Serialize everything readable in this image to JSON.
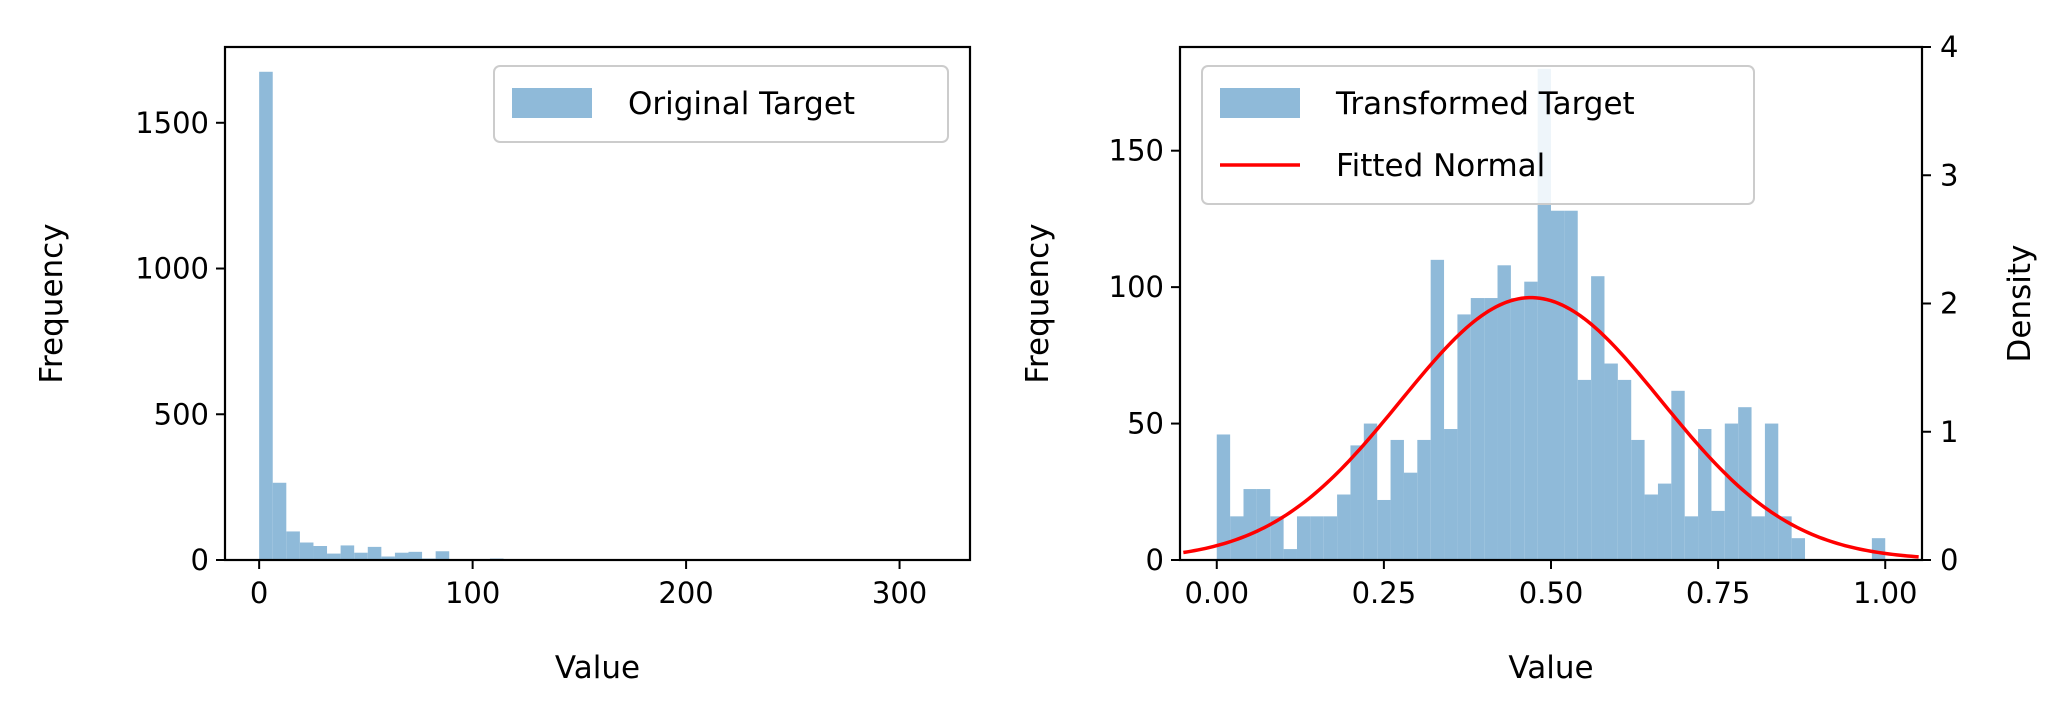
{
  "chart_data": [
    {
      "type": "bar",
      "subtype": "histogram",
      "xlabel": "Value",
      "ylabel": "Frequency",
      "xlim": [
        -16,
        333
      ],
      "ylim": [
        0,
        1760
      ],
      "xticks": [
        0,
        100,
        200,
        300
      ],
      "xtick_labels": [
        "0",
        "100",
        "200",
        "300"
      ],
      "yticks": [
        0,
        500,
        1000,
        1500
      ],
      "ytick_labels": [
        "0",
        "500",
        "1000",
        "1500"
      ],
      "bar_color": "#8fbad9",
      "legend": {
        "placement": "top-right",
        "entries": [
          "Original Target"
        ]
      },
      "series": [
        {
          "name": "Original Target",
          "bin_width": 6.36,
          "x_start": 0,
          "values": [
            1675,
            265,
            98,
            60,
            48,
            22,
            50,
            25,
            45,
            12,
            25,
            28,
            5,
            30,
            0,
            0,
            0,
            5,
            0,
            0,
            0,
            0,
            0,
            0,
            0,
            0,
            0,
            0,
            0,
            0,
            0,
            0,
            0,
            0,
            0,
            0,
            0,
            0,
            0,
            0,
            0,
            0,
            0,
            0,
            0,
            0,
            0,
            0,
            0,
            2
          ]
        }
      ]
    },
    {
      "type": "bar",
      "subtype": "histogram-with-fitted-curve",
      "xlabel": "Value",
      "ylabel": "Frequency",
      "y2label": "Density",
      "xlim": [
        -0.055,
        1.055
      ],
      "ylim": [
        0,
        188
      ],
      "y2lim": [
        0,
        4
      ],
      "xticks": [
        0,
        0.25,
        0.5,
        0.75,
        1.0
      ],
      "xtick_labels": [
        "0.00",
        "0.25",
        "0.50",
        "0.75",
        "1.00"
      ],
      "yticks": [
        0,
        50,
        100,
        150
      ],
      "ytick_labels": [
        "0",
        "50",
        "100",
        "150"
      ],
      "y2ticks": [
        0,
        1,
        2,
        3,
        4
      ],
      "y2tick_labels": [
        "0",
        "1",
        "2",
        "3",
        "4"
      ],
      "bar_color": "#8fbad9",
      "curve_color": "#ff0000",
      "legend": {
        "placement": "top-left",
        "entries": [
          "Transformed Target",
          "Fitted Normal"
        ]
      },
      "series": [
        {
          "name": "Transformed Target",
          "bin_width": 0.02,
          "x_start": 0,
          "values": [
            46,
            16,
            26,
            26,
            16,
            4,
            16,
            16,
            16,
            24,
            42,
            50,
            22,
            44,
            32,
            44,
            110,
            48,
            90,
            96,
            96,
            108,
            96,
            102,
            180,
            128,
            128,
            66,
            104,
            72,
            66,
            44,
            24,
            28,
            62,
            16,
            48,
            18,
            50,
            56,
            16,
            50,
            16,
            8,
            0,
            0,
            0,
            0,
            0,
            8
          ]
        },
        {
          "name": "Fitted Normal",
          "kind": "normal-pdf",
          "mean": 0.47,
          "std": 0.195,
          "x_range": [
            -0.05,
            1.05
          ],
          "axis": "right"
        }
      ]
    }
  ]
}
